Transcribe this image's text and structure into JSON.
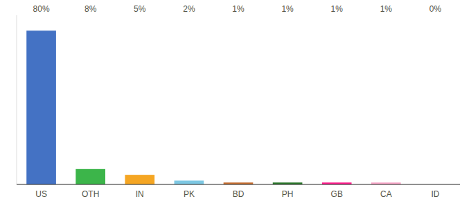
{
  "chart_data": {
    "type": "bar",
    "categories": [
      "US",
      "OTH",
      "IN",
      "PK",
      "BD",
      "PH",
      "GB",
      "CA",
      "ID"
    ],
    "values": [
      80,
      8,
      5,
      2,
      1,
      1,
      1,
      1,
      0
    ],
    "value_labels": [
      "80%",
      "8%",
      "5%",
      "2%",
      "1%",
      "1%",
      "1%",
      "1%",
      "0%"
    ],
    "colors": [
      "#4472c4",
      "#3cb54a",
      "#f5a623",
      "#7ec8e3",
      "#c87033",
      "#2d7a2d",
      "#ff1f8e",
      "#f9a8c9",
      "#cccccc"
    ],
    "ylim": [
      0,
      88
    ],
    "data_labels": true,
    "tick_labels": "x",
    "grid": false
  }
}
